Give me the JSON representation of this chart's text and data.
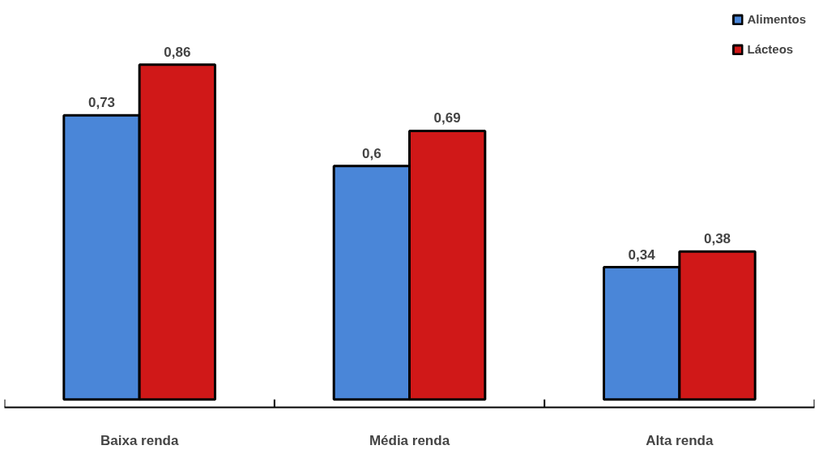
{
  "chart_data": {
    "type": "bar",
    "categories": [
      "Baixa renda",
      "Média renda",
      "Alta renda"
    ],
    "series": [
      {
        "name": "Alimentos",
        "color": "#4a86d8",
        "values": [
          0.73,
          0.6,
          0.34
        ],
        "value_labels": [
          "0,73",
          "0,6",
          "0,34"
        ]
      },
      {
        "name": "Lácteos",
        "color": "#d01818",
        "values": [
          0.86,
          0.69,
          0.38
        ],
        "value_labels": [
          "0,86",
          "0,69",
          "0,38"
        ]
      }
    ],
    "legend": "top right",
    "grid": false
  }
}
